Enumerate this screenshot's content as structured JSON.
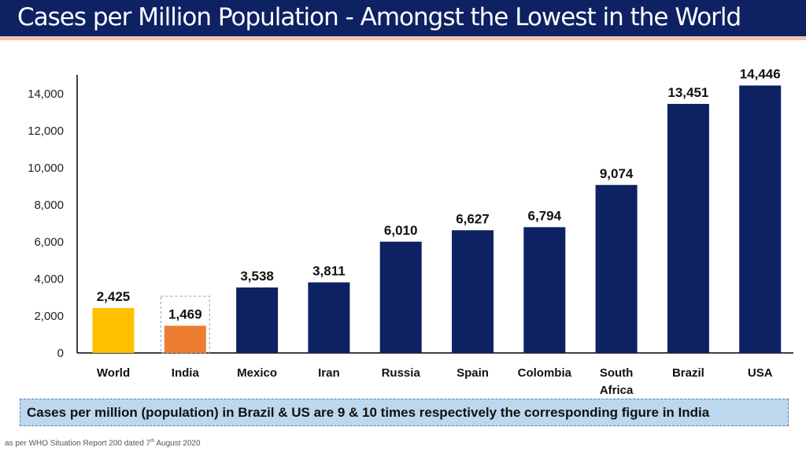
{
  "title": "Cases per Million Population - Amongst the Lowest in the World",
  "note": "Cases per million (population) in Brazil & US are 9 & 10 times respectively the corresponding figure in India",
  "source": {
    "prefix": "as per WHO Situation Report 200 dated 7",
    "sup": "th",
    "suffix": " August 2020"
  },
  "colors": {
    "world": "#ffc000",
    "india": "#ed7d31",
    "others": "#0d2163"
  },
  "chart_data": {
    "type": "bar",
    "title": "Cases per Million Population",
    "categories": [
      "World",
      "India",
      "Mexico",
      "Iran",
      "Russia",
      "Spain",
      "Colombia",
      "South Africa",
      "Brazil",
      "USA"
    ],
    "values": [
      2425,
      1469,
      3538,
      3811,
      6010,
      6627,
      6794,
      9074,
      13451,
      14446
    ],
    "labels": [
      "2,425",
      "1,469",
      "3,538",
      "3,811",
      "6,010",
      "6,627",
      "6,794",
      "9,074",
      "13,451",
      "14,446"
    ],
    "yticks": [
      "0",
      "2,000",
      "4,000",
      "6,000",
      "8,000",
      "10,000",
      "12,000",
      "14,000"
    ],
    "ylim": [
      0,
      14000
    ],
    "xlabel": "",
    "ylabel": "",
    "grid": false,
    "legend": "none"
  }
}
